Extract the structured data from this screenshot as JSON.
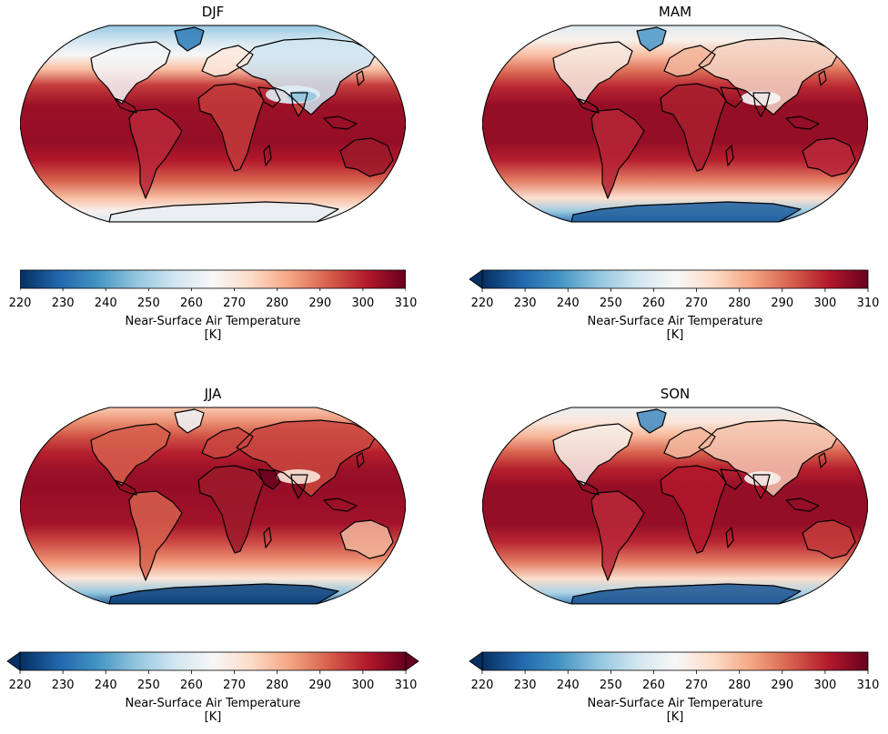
{
  "colors": {
    "colormap": [
      "#053061",
      "#2166ac",
      "#4393c3",
      "#92c5de",
      "#d1e5f0",
      "#f7f7f7",
      "#fddbc7",
      "#f4a582",
      "#d6604d",
      "#b2182b",
      "#67001f"
    ],
    "coastline": "#000000",
    "outline": "#000000"
  },
  "panels": [
    {
      "title": "DJF",
      "extend": "neither",
      "colorbar": {
        "ticks": [
          "220",
          "230",
          "240",
          "250",
          "260",
          "270",
          "280",
          "290",
          "300",
          "310"
        ],
        "label_line1": "Near-Surface Air Temperature",
        "label_line2": "[K]"
      }
    },
    {
      "title": "MAM",
      "extend": "min",
      "colorbar": {
        "ticks": [
          "220",
          "230",
          "240",
          "250",
          "260",
          "270",
          "280",
          "290",
          "300",
          "310"
        ],
        "label_line1": "Near-Surface Air Temperature",
        "label_line2": "[K]"
      }
    },
    {
      "title": "JJA",
      "extend": "both",
      "colorbar": {
        "ticks": [
          "220",
          "230",
          "240",
          "250",
          "260",
          "270",
          "280",
          "290",
          "300",
          "310"
        ],
        "label_line1": "Near-Surface Air Temperature",
        "label_line2": "[K]"
      }
    },
    {
      "title": "SON",
      "extend": "min",
      "colorbar": {
        "ticks": [
          "220",
          "230",
          "240",
          "250",
          "260",
          "270",
          "280",
          "290",
          "300",
          "310"
        ],
        "label_line1": "Near-Surface Air Temperature",
        "label_line2": "[K]"
      }
    }
  ],
  "colorbar_range": [
    220,
    310
  ],
  "projection": "Robinson"
}
